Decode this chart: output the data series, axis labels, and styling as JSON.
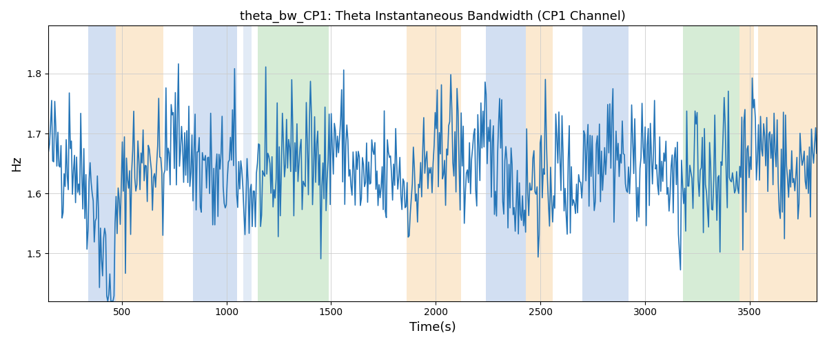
{
  "title": "theta_bw_CP1: Theta Instantaneous Bandwidth (CP1 Channel)",
  "xlabel": "Time(s)",
  "ylabel": "Hz",
  "xlim": [
    150,
    3820
  ],
  "ylim": [
    1.42,
    1.88
  ],
  "yticks": [
    1.5,
    1.6,
    1.7,
    1.8
  ],
  "xticks": [
    500,
    1000,
    1500,
    2000,
    2500,
    3000,
    3500
  ],
  "line_color": "#2575b7",
  "line_width": 1.2,
  "bg_color": "#ffffff",
  "colored_bands": [
    {
      "xmin": 340,
      "xmax": 470,
      "color": "#aec6e8",
      "alpha": 0.55
    },
    {
      "xmin": 470,
      "xmax": 700,
      "color": "#f9d8aa",
      "alpha": 0.55
    },
    {
      "xmin": 840,
      "xmax": 1050,
      "color": "#aec6e8",
      "alpha": 0.55
    },
    {
      "xmin": 1080,
      "xmax": 1120,
      "color": "#aec6e8",
      "alpha": 0.35
    },
    {
      "xmin": 1150,
      "xmax": 1490,
      "color": "#b5ddb5",
      "alpha": 0.55
    },
    {
      "xmin": 1860,
      "xmax": 2120,
      "color": "#f9d8aa",
      "alpha": 0.55
    },
    {
      "xmin": 2240,
      "xmax": 2430,
      "color": "#aec6e8",
      "alpha": 0.55
    },
    {
      "xmin": 2430,
      "xmax": 2560,
      "color": "#f9d8aa",
      "alpha": 0.55
    },
    {
      "xmin": 2700,
      "xmax": 2920,
      "color": "#aec6e8",
      "alpha": 0.55
    },
    {
      "xmin": 3180,
      "xmax": 3450,
      "color": "#b5ddb5",
      "alpha": 0.55
    },
    {
      "xmin": 3450,
      "xmax": 3520,
      "color": "#f9d8aa",
      "alpha": 0.55
    },
    {
      "xmin": 3540,
      "xmax": 3820,
      "color": "#f9d8aa",
      "alpha": 0.55
    }
  ],
  "seed": 42,
  "n_points": 740
}
